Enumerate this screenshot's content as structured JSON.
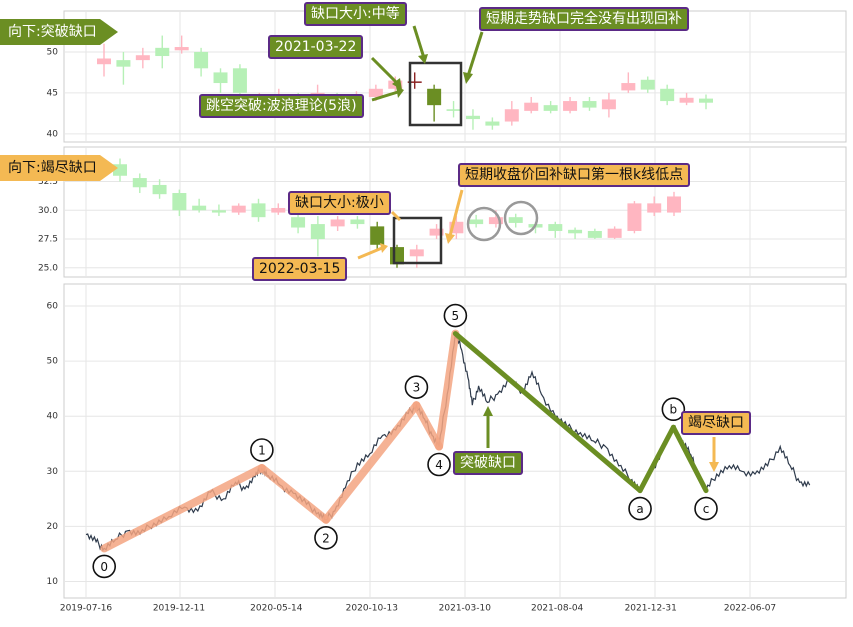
{
  "panels": {
    "top": {
      "side_label": "向下:突破缺口",
      "y_ticks": [
        40,
        45,
        50
      ],
      "annotations": {
        "gap_size": "缺口大小:中等",
        "date": "2021-03-22",
        "breakout": "跳空突破:波浪理论(5浪)",
        "note": "短期走势缺口完全没有出现回补"
      }
    },
    "middle": {
      "side_label": "向下:竭尽缺口",
      "y_ticks": [
        "25.0",
        "27.5",
        "30.0",
        "32.5"
      ],
      "annotations": {
        "gap_size": "缺口大小:极小",
        "date": "2022-03-15",
        "note": "短期收盘价回补缺口第一根k线低点"
      }
    },
    "bottom": {
      "y_ticks": [
        10,
        20,
        30,
        40,
        50,
        60
      ],
      "x_ticks": [
        "2019-07-16",
        "2019-12-11",
        "2020-05-14",
        "2020-10-13",
        "2021-03-10",
        "2021-08-04",
        "2021-12-31",
        "2022-06-07"
      ],
      "wave_labels": [
        "0",
        "1",
        "2",
        "3",
        "4",
        "5",
        "a",
        "b",
        "c"
      ],
      "annotations": {
        "breakout_gap": "突破缺口",
        "exhaustion_gap": "竭尽缺口"
      }
    }
  },
  "chart_data": [
    {
      "type": "candlestick",
      "title": "",
      "ylim": [
        39,
        55
      ],
      "up_color": "#ffb6c1",
      "down_color": "#b6f0b6",
      "highlight_color": "#6b8e23",
      "candles": [
        {
          "o": 48.5,
          "c": 49.2,
          "h": 51,
          "l": 47
        },
        {
          "o": 49.0,
          "c": 48.2,
          "h": 50,
          "l": 46
        },
        {
          "o": 49.0,
          "c": 49.6,
          "h": 50.5,
          "l": 48
        },
        {
          "o": 50.5,
          "c": 49.5,
          "h": 52,
          "l": 48
        },
        {
          "o": 50.2,
          "c": 50.6,
          "h": 52,
          "l": 49.8
        },
        {
          "o": 50.0,
          "c": 48.0,
          "h": 50.5,
          "l": 47
        },
        {
          "o": 47.5,
          "c": 46.2,
          "h": 48,
          "l": 45
        },
        {
          "o": 48.0,
          "c": 45.0,
          "h": 48.5,
          "l": 44.5
        },
        {
          "o": 44.0,
          "c": 44.3,
          "h": 45,
          "l": 43
        },
        {
          "o": 44.3,
          "c": 44.8,
          "h": 45.5,
          "l": 44
        },
        {
          "o": 44.6,
          "c": 44.2,
          "h": 45,
          "l": 43.5
        },
        {
          "o": 44.4,
          "c": 45.0,
          "h": 46,
          "l": 44
        },
        {
          "o": 44.7,
          "c": 44.3,
          "h": 45,
          "l": 43.5
        },
        {
          "o": 44.2,
          "c": 44.6,
          "h": 45.2,
          "l": 43.8
        },
        {
          "o": 44.5,
          "c": 45.5,
          "h": 46,
          "l": 44
        },
        {
          "o": 45.5,
          "c": 46.5,
          "h": 47,
          "l": 45
        },
        {
          "o": 46.3,
          "c": 46.4,
          "h": 47.5,
          "l": 45.5,
          "hl": true
        },
        {
          "o": 45.5,
          "c": 43.5,
          "h": 46,
          "l": 41.5,
          "hl": true
        },
        {
          "o": 43.0,
          "c": 42.8,
          "h": 44,
          "l": 42
        },
        {
          "o": 42.2,
          "c": 41.8,
          "h": 43,
          "l": 40.5
        },
        {
          "o": 41.5,
          "c": 41.0,
          "h": 42,
          "l": 40.5
        },
        {
          "o": 41.5,
          "c": 43.0,
          "h": 44,
          "l": 41
        },
        {
          "o": 42.8,
          "c": 43.8,
          "h": 44.5,
          "l": 42.5
        },
        {
          "o": 43.5,
          "c": 42.8,
          "h": 44,
          "l": 42.5
        },
        {
          "o": 42.8,
          "c": 44.0,
          "h": 44.5,
          "l": 42.5
        },
        {
          "o": 44.0,
          "c": 43.2,
          "h": 44.5,
          "l": 42.8
        },
        {
          "o": 43.0,
          "c": 44.2,
          "h": 45,
          "l": 42
        },
        {
          "o": 45.3,
          "c": 46.2,
          "h": 47.5,
          "l": 45
        },
        {
          "o": 46.6,
          "c": 45.4,
          "h": 47,
          "l": 45
        },
        {
          "o": 45.5,
          "c": 44.0,
          "h": 46,
          "l": 43.5
        },
        {
          "o": 43.8,
          "c": 44.4,
          "h": 45,
          "l": 43.5
        },
        {
          "o": 44.3,
          "c": 43.8,
          "h": 44.8,
          "l": 43
        }
      ]
    },
    {
      "type": "candlestick",
      "title": "",
      "ylim": [
        24.2,
        35.5
      ],
      "up_color": "#ffb6c1",
      "down_color": "#b6f0b6",
      "highlight_color": "#6b8e23",
      "candles": [
        {
          "o": 34.0,
          "c": 33.0,
          "h": 34.5,
          "l": 32.5
        },
        {
          "o": 32.8,
          "c": 32.0,
          "h": 33.2,
          "l": 31.5
        },
        {
          "o": 32.2,
          "c": 31.4,
          "h": 32.7,
          "l": 31
        },
        {
          "o": 31.5,
          "c": 30.0,
          "h": 31.8,
          "l": 29.5
        },
        {
          "o": 30.4,
          "c": 30.0,
          "h": 31,
          "l": 29.8
        },
        {
          "o": 30.0,
          "c": 29.8,
          "h": 30.5,
          "l": 29.5
        },
        {
          "o": 29.8,
          "c": 30.4,
          "h": 30.6,
          "l": 29.6
        },
        {
          "o": 30.6,
          "c": 29.4,
          "h": 31,
          "l": 29
        },
        {
          "o": 29.8,
          "c": 30.2,
          "h": 30.6,
          "l": 29.6
        },
        {
          "o": 29.4,
          "c": 28.5,
          "h": 29.6,
          "l": 28
        },
        {
          "o": 28.8,
          "c": 27.5,
          "h": 29.5,
          "l": 26
        },
        {
          "o": 28.6,
          "c": 29.2,
          "h": 29.5,
          "l": 28.2
        },
        {
          "o": 29.2,
          "c": 28.8,
          "h": 29.5,
          "l": 28.4
        },
        {
          "o": 28.6,
          "c": 27.0,
          "h": 29,
          "l": 26.5,
          "hl": true
        },
        {
          "o": 26.8,
          "c": 25.3,
          "h": 27,
          "l": 25,
          "hl": true
        },
        {
          "o": 26.0,
          "c": 26.6,
          "h": 27,
          "l": 25
        },
        {
          "o": 27.8,
          "c": 28.4,
          "h": 28.8,
          "l": 27.5
        },
        {
          "o": 28.0,
          "c": 29.0,
          "h": 29.5,
          "l": 27.5
        },
        {
          "o": 29.2,
          "c": 28.8,
          "h": 29.6,
          "l": 28.5
        },
        {
          "o": 28.8,
          "c": 29.4,
          "h": 30,
          "l": 28.5
        },
        {
          "o": 29.4,
          "c": 28.9,
          "h": 29.7,
          "l": 28.5
        },
        {
          "o": 28.8,
          "c": 28.5,
          "h": 29,
          "l": 28
        },
        {
          "o": 28.8,
          "c": 28.2,
          "h": 29,
          "l": 27.6
        },
        {
          "o": 28.3,
          "c": 28.0,
          "h": 28.5,
          "l": 27.5
        },
        {
          "o": 28.2,
          "c": 27.6,
          "h": 28.4,
          "l": 27.5
        },
        {
          "o": 27.6,
          "c": 28.4,
          "h": 28.6,
          "l": 27.5
        },
        {
          "o": 28.2,
          "c": 30.6,
          "h": 30.8,
          "l": 28
        },
        {
          "o": 29.8,
          "c": 30.6,
          "h": 31.2,
          "l": 29.5
        },
        {
          "o": 29.8,
          "c": 31.2,
          "h": 31.6,
          "l": 29.5
        }
      ]
    },
    {
      "type": "line",
      "title": "",
      "xlabel": "",
      "ylabel": "",
      "ylim": [
        7,
        64
      ],
      "grid": true,
      "price_color": "#2f3b4c",
      "wave_up_color": "#f4a582",
      "wave_down_color": "#6b8e23",
      "price": [
        [
          "2019-07-16",
          18.5
        ],
        [
          "2019-08-01",
          17.2
        ],
        [
          "2019-08-14",
          16.0
        ],
        [
          "2019-09-01",
          17.6
        ],
        [
          "2019-09-20",
          19.2
        ],
        [
          "2019-10-10",
          18.6
        ],
        [
          "2019-11-01",
          20.6
        ],
        [
          "2019-11-25",
          21.8
        ],
        [
          "2019-12-20",
          23.5
        ],
        [
          "2020-01-10",
          22.8
        ],
        [
          "2020-01-30",
          26.2
        ],
        [
          "2020-02-20",
          25.0
        ],
        [
          "2020-03-10",
          28.0
        ],
        [
          "2020-03-25",
          26.8
        ],
        [
          "2020-04-10",
          29.0
        ],
        [
          "2020-04-21",
          30.6
        ],
        [
          "2020-05-01",
          29.2
        ],
        [
          "2020-05-20",
          27.5
        ],
        [
          "2020-06-10",
          26.0
        ],
        [
          "2020-07-01",
          24.0
        ],
        [
          "2020-07-20",
          22.5
        ],
        [
          "2020-08-01",
          21.2
        ],
        [
          "2020-08-15",
          22.8
        ],
        [
          "2020-09-01",
          27.0
        ],
        [
          "2020-09-20",
          31.5
        ],
        [
          "2020-10-10",
          33.2
        ],
        [
          "2020-10-30",
          36.5
        ],
        [
          "2020-11-20",
          37.5
        ],
        [
          "2020-12-10",
          40.5
        ],
        [
          "2020-12-23",
          42.0
        ],
        [
          "2021-01-05",
          39.5
        ],
        [
          "2021-01-17",
          36.5
        ],
        [
          "2021-01-28",
          34.5
        ],
        [
          "2021-02-10",
          44.0
        ],
        [
          "2021-02-23",
          55.0
        ],
        [
          "2021-03-05",
          52.0
        ],
        [
          "2021-03-15",
          47.0
        ],
        [
          "2021-03-22",
          42.0
        ],
        [
          "2021-04-01",
          45.5
        ],
        [
          "2021-04-15",
          42.5
        ],
        [
          "2021-05-01",
          44.0
        ],
        [
          "2021-05-20",
          46.5
        ],
        [
          "2021-06-10",
          44.5
        ],
        [
          "2021-06-25",
          48.0
        ],
        [
          "2021-07-10",
          44.0
        ],
        [
          "2021-08-01",
          40.0
        ],
        [
          "2021-08-20",
          38.0
        ],
        [
          "2021-09-10",
          37.0
        ],
        [
          "2021-10-01",
          35.5
        ],
        [
          "2021-10-20",
          34.5
        ],
        [
          "2021-11-10",
          31.0
        ],
        [
          "2021-12-01",
          28.5
        ],
        [
          "2021-12-14",
          26.5
        ],
        [
          "2022-01-01",
          30.0
        ],
        [
          "2022-01-20",
          34.0
        ],
        [
          "2022-02-05",
          38.0
        ],
        [
          "2022-02-20",
          35.5
        ],
        [
          "2022-03-05",
          33.0
        ],
        [
          "2022-03-15",
          29.5
        ],
        [
          "2022-03-29",
          26.5
        ],
        [
          "2022-04-15",
          29.5
        ],
        [
          "2022-05-05",
          31.0
        ],
        [
          "2022-05-25",
          30.0
        ],
        [
          "2022-06-15",
          29.5
        ],
        [
          "2022-07-05",
          31.0
        ],
        [
          "2022-07-25",
          34.5
        ],
        [
          "2022-08-10",
          31.0
        ],
        [
          "2022-08-25",
          28.0
        ],
        [
          "2022-09-10",
          27.5
        ]
      ],
      "waves": [
        {
          "label": "0",
          "x": "2019-08-14",
          "y": 16.0,
          "dir": "up"
        },
        {
          "label": "1",
          "x": "2020-04-21",
          "y": 30.6,
          "dir": "down"
        },
        {
          "label": "2",
          "x": "2020-08-01",
          "y": 21.2,
          "dir": "up"
        },
        {
          "label": "3",
          "x": "2020-12-23",
          "y": 42.0,
          "dir": "down"
        },
        {
          "label": "4",
          "x": "2021-01-28",
          "y": 34.5,
          "dir": "up"
        },
        {
          "label": "5",
          "x": "2021-02-23",
          "y": 55.0,
          "dir": "down"
        },
        {
          "label": "a",
          "x": "2021-12-14",
          "y": 26.5,
          "dir": "up"
        },
        {
          "label": "b",
          "x": "2022-02-05",
          "y": 38.0,
          "dir": "down"
        },
        {
          "label": "c",
          "x": "2022-03-29",
          "y": 26.5,
          "dir": null
        }
      ]
    }
  ]
}
